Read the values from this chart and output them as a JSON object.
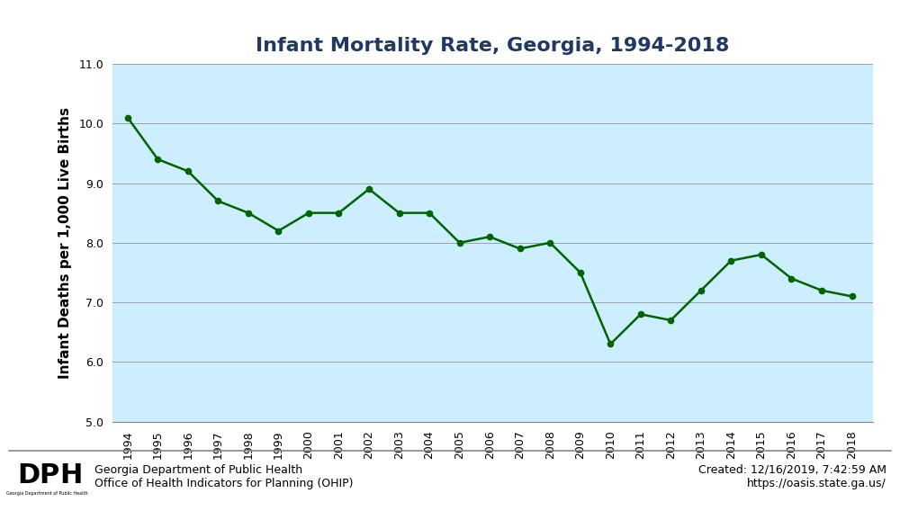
{
  "title": "Infant Mortality Rate, Georgia, 1994-2018",
  "ylabel": "Infant Deaths per 1,000 Live Births",
  "years": [
    1994,
    1995,
    1996,
    1997,
    1998,
    1999,
    2000,
    2001,
    2002,
    2003,
    2004,
    2005,
    2006,
    2007,
    2008,
    2009,
    2010,
    2011,
    2012,
    2013,
    2014,
    2015,
    2016,
    2017,
    2018
  ],
  "values": [
    10.1,
    9.4,
    9.2,
    8.7,
    8.5,
    8.2,
    8.5,
    8.5,
    8.9,
    8.5,
    8.5,
    8.0,
    8.1,
    7.9,
    8.0,
    7.5,
    6.3,
    6.8,
    6.7,
    7.2,
    7.7,
    7.8,
    7.4,
    7.2,
    7.1
  ],
  "ylim": [
    5.0,
    11.0
  ],
  "yticks": [
    5.0,
    6.0,
    7.0,
    8.0,
    9.0,
    10.0,
    11.0
  ],
  "line_color": "#006400",
  "marker_color": "#006400",
  "plot_bg": "#cceeff",
  "outer_bg": "#ffffff",
  "title_color": "#1f3864",
  "title_fontsize": 16,
  "ylabel_fontsize": 11,
  "tick_fontsize": 9,
  "footer_left_line1": "Georgia Department of Public Health",
  "footer_left_line2": "Office of Health Indicators for Planning (OHIP)",
  "footer_right_line1": "Created: 12/16/2019, 7:42:59 AM",
  "footer_right_line2": "https://oasis.state.ga.us/",
  "footer_fontsize": 9,
  "grid_color": "#a0a0a0",
  "separator_color": "#888888"
}
